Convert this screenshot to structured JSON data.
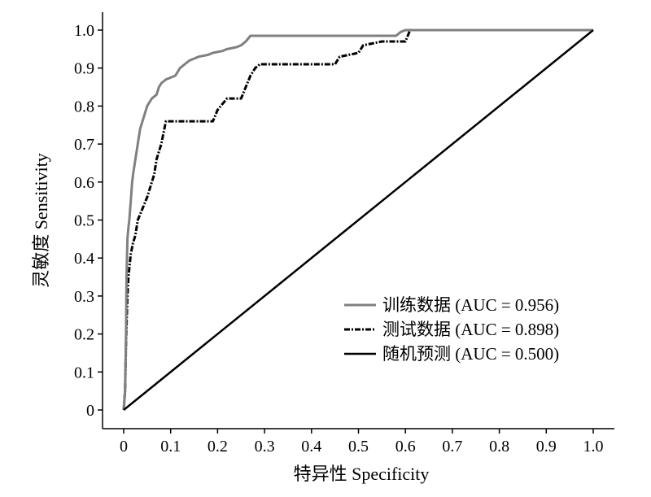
{
  "chart_data": {
    "type": "line",
    "xlabel": "特异性 Specificity",
    "ylabel": "灵敏度 Sensitivity",
    "xlim": [
      0,
      1.0
    ],
    "ylim": [
      0,
      1.0
    ],
    "grid": false,
    "legend_position": "bottom-right",
    "x_ticks": [
      "0",
      "0.1",
      "0.2",
      "0.3",
      "0.4",
      "0.5",
      "0.6",
      "0.7",
      "0.8",
      "0.9",
      "1.0"
    ],
    "y_ticks": [
      "0",
      "0.1",
      "0.2",
      "0.3",
      "0.4",
      "0.5",
      "0.6",
      "0.7",
      "0.8",
      "0.9",
      "1.0"
    ],
    "series": [
      {
        "name": "训练数据 (AUC = 0.956)",
        "color": "#808080",
        "style": "solid",
        "x": [
          0,
          0.003,
          0.005,
          0.006,
          0.008,
          0.01,
          0.012,
          0.015,
          0.018,
          0.02,
          0.025,
          0.03,
          0.035,
          0.04,
          0.045,
          0.05,
          0.055,
          0.06,
          0.065,
          0.07,
          0.075,
          0.08,
          0.09,
          0.1,
          0.11,
          0.12,
          0.13,
          0.14,
          0.15,
          0.16,
          0.18,
          0.19,
          0.21,
          0.22,
          0.24,
          0.25,
          0.26,
          0.27,
          0.3,
          0.4,
          0.5,
          0.58,
          0.59,
          0.6,
          0.7,
          0.8,
          0.9,
          1.0
        ],
        "y": [
          0,
          0.05,
          0.2,
          0.35,
          0.45,
          0.48,
          0.5,
          0.55,
          0.6,
          0.62,
          0.66,
          0.7,
          0.74,
          0.76,
          0.78,
          0.8,
          0.81,
          0.82,
          0.825,
          0.83,
          0.85,
          0.86,
          0.87,
          0.875,
          0.88,
          0.9,
          0.91,
          0.92,
          0.925,
          0.93,
          0.935,
          0.94,
          0.945,
          0.95,
          0.955,
          0.96,
          0.97,
          0.985,
          0.985,
          0.985,
          0.985,
          0.985,
          0.995,
          1.0,
          1.0,
          1.0,
          1.0,
          1.0
        ]
      },
      {
        "name": "测试数据 (AUC = 0.898)",
        "color": "#000000",
        "style": "dash-dot",
        "x": [
          0,
          0.003,
          0.005,
          0.008,
          0.01,
          0.015,
          0.02,
          0.025,
          0.03,
          0.04,
          0.05,
          0.06,
          0.065,
          0.07,
          0.075,
          0.08,
          0.085,
          0.09,
          0.1,
          0.15,
          0.19,
          0.2,
          0.22,
          0.25,
          0.26,
          0.27,
          0.28,
          0.29,
          0.3,
          0.35,
          0.4,
          0.45,
          0.46,
          0.5,
          0.51,
          0.55,
          0.6,
          0.61,
          0.7,
          0.8,
          0.9,
          1.0
        ],
        "y": [
          0,
          0.05,
          0.18,
          0.3,
          0.35,
          0.41,
          0.44,
          0.46,
          0.5,
          0.53,
          0.56,
          0.6,
          0.62,
          0.66,
          0.68,
          0.7,
          0.73,
          0.76,
          0.76,
          0.76,
          0.76,
          0.79,
          0.82,
          0.82,
          0.85,
          0.88,
          0.9,
          0.91,
          0.91,
          0.91,
          0.91,
          0.91,
          0.93,
          0.94,
          0.96,
          0.97,
          0.97,
          1.0,
          1.0,
          1.0,
          1.0,
          1.0
        ]
      },
      {
        "name": "随机预测 (AUC = 0.500)",
        "color": "#000000",
        "style": "solid",
        "x": [
          0,
          1.0
        ],
        "y": [
          0,
          1.0
        ]
      }
    ]
  }
}
